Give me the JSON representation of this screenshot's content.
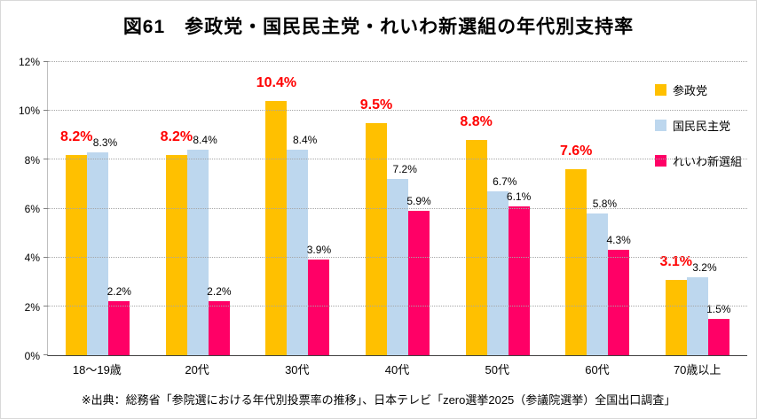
{
  "title": "図61　参政党・国民民主党・れいわ新選組の年代別支持率",
  "source": "※出典：総務省「参院選における年代別投票率の推移」、日本テレビ「zero選挙2025（参議院選挙）全国出口調査」",
  "chart_data": {
    "type": "bar",
    "title": "図61　参政党・国民民主党・れいわ新選組の年代別支持率",
    "categories": [
      "18〜19歳",
      "20代",
      "30代",
      "40代",
      "50代",
      "60代",
      "70歳以上"
    ],
    "series": [
      {
        "key": "sanseito",
        "name": "参政党",
        "color": "#FFC000",
        "value_label_color": "#FF0000",
        "values": [
          8.2,
          8.2,
          10.4,
          9.5,
          8.8,
          7.6,
          3.1
        ],
        "labels": [
          "8.2%",
          "8.2%",
          "10.4%",
          "9.5%",
          "8.8%",
          "7.6%",
          "3.1%"
        ]
      },
      {
        "key": "kokumin-minshuto",
        "name": "国民民主党",
        "color": "#BDD7EE",
        "value_label_color": "#000000",
        "values": [
          8.3,
          8.4,
          8.4,
          7.2,
          6.7,
          5.8,
          3.2
        ],
        "labels": [
          "8.3%",
          "8.4%",
          "8.4%",
          "7.2%",
          "6.7%",
          "5.8%",
          "3.2%"
        ]
      },
      {
        "key": "reiwa-shinsengumi",
        "name": "れいわ新選組",
        "color": "#FF0066",
        "value_label_color": "#000000",
        "values": [
          2.2,
          2.2,
          3.9,
          5.9,
          6.1,
          4.3,
          1.5
        ],
        "labels": [
          "2.2%",
          "2.2%",
          "3.9%",
          "5.9%",
          "6.1%",
          "4.3%",
          "1.5%"
        ]
      }
    ],
    "ylim": [
      0,
      12
    ],
    "ytick_step": 2,
    "ytick_labels": [
      "0%",
      "2%",
      "4%",
      "6%",
      "8%",
      "10%",
      "12%"
    ],
    "grid": true,
    "legend_position": "top-right"
  }
}
